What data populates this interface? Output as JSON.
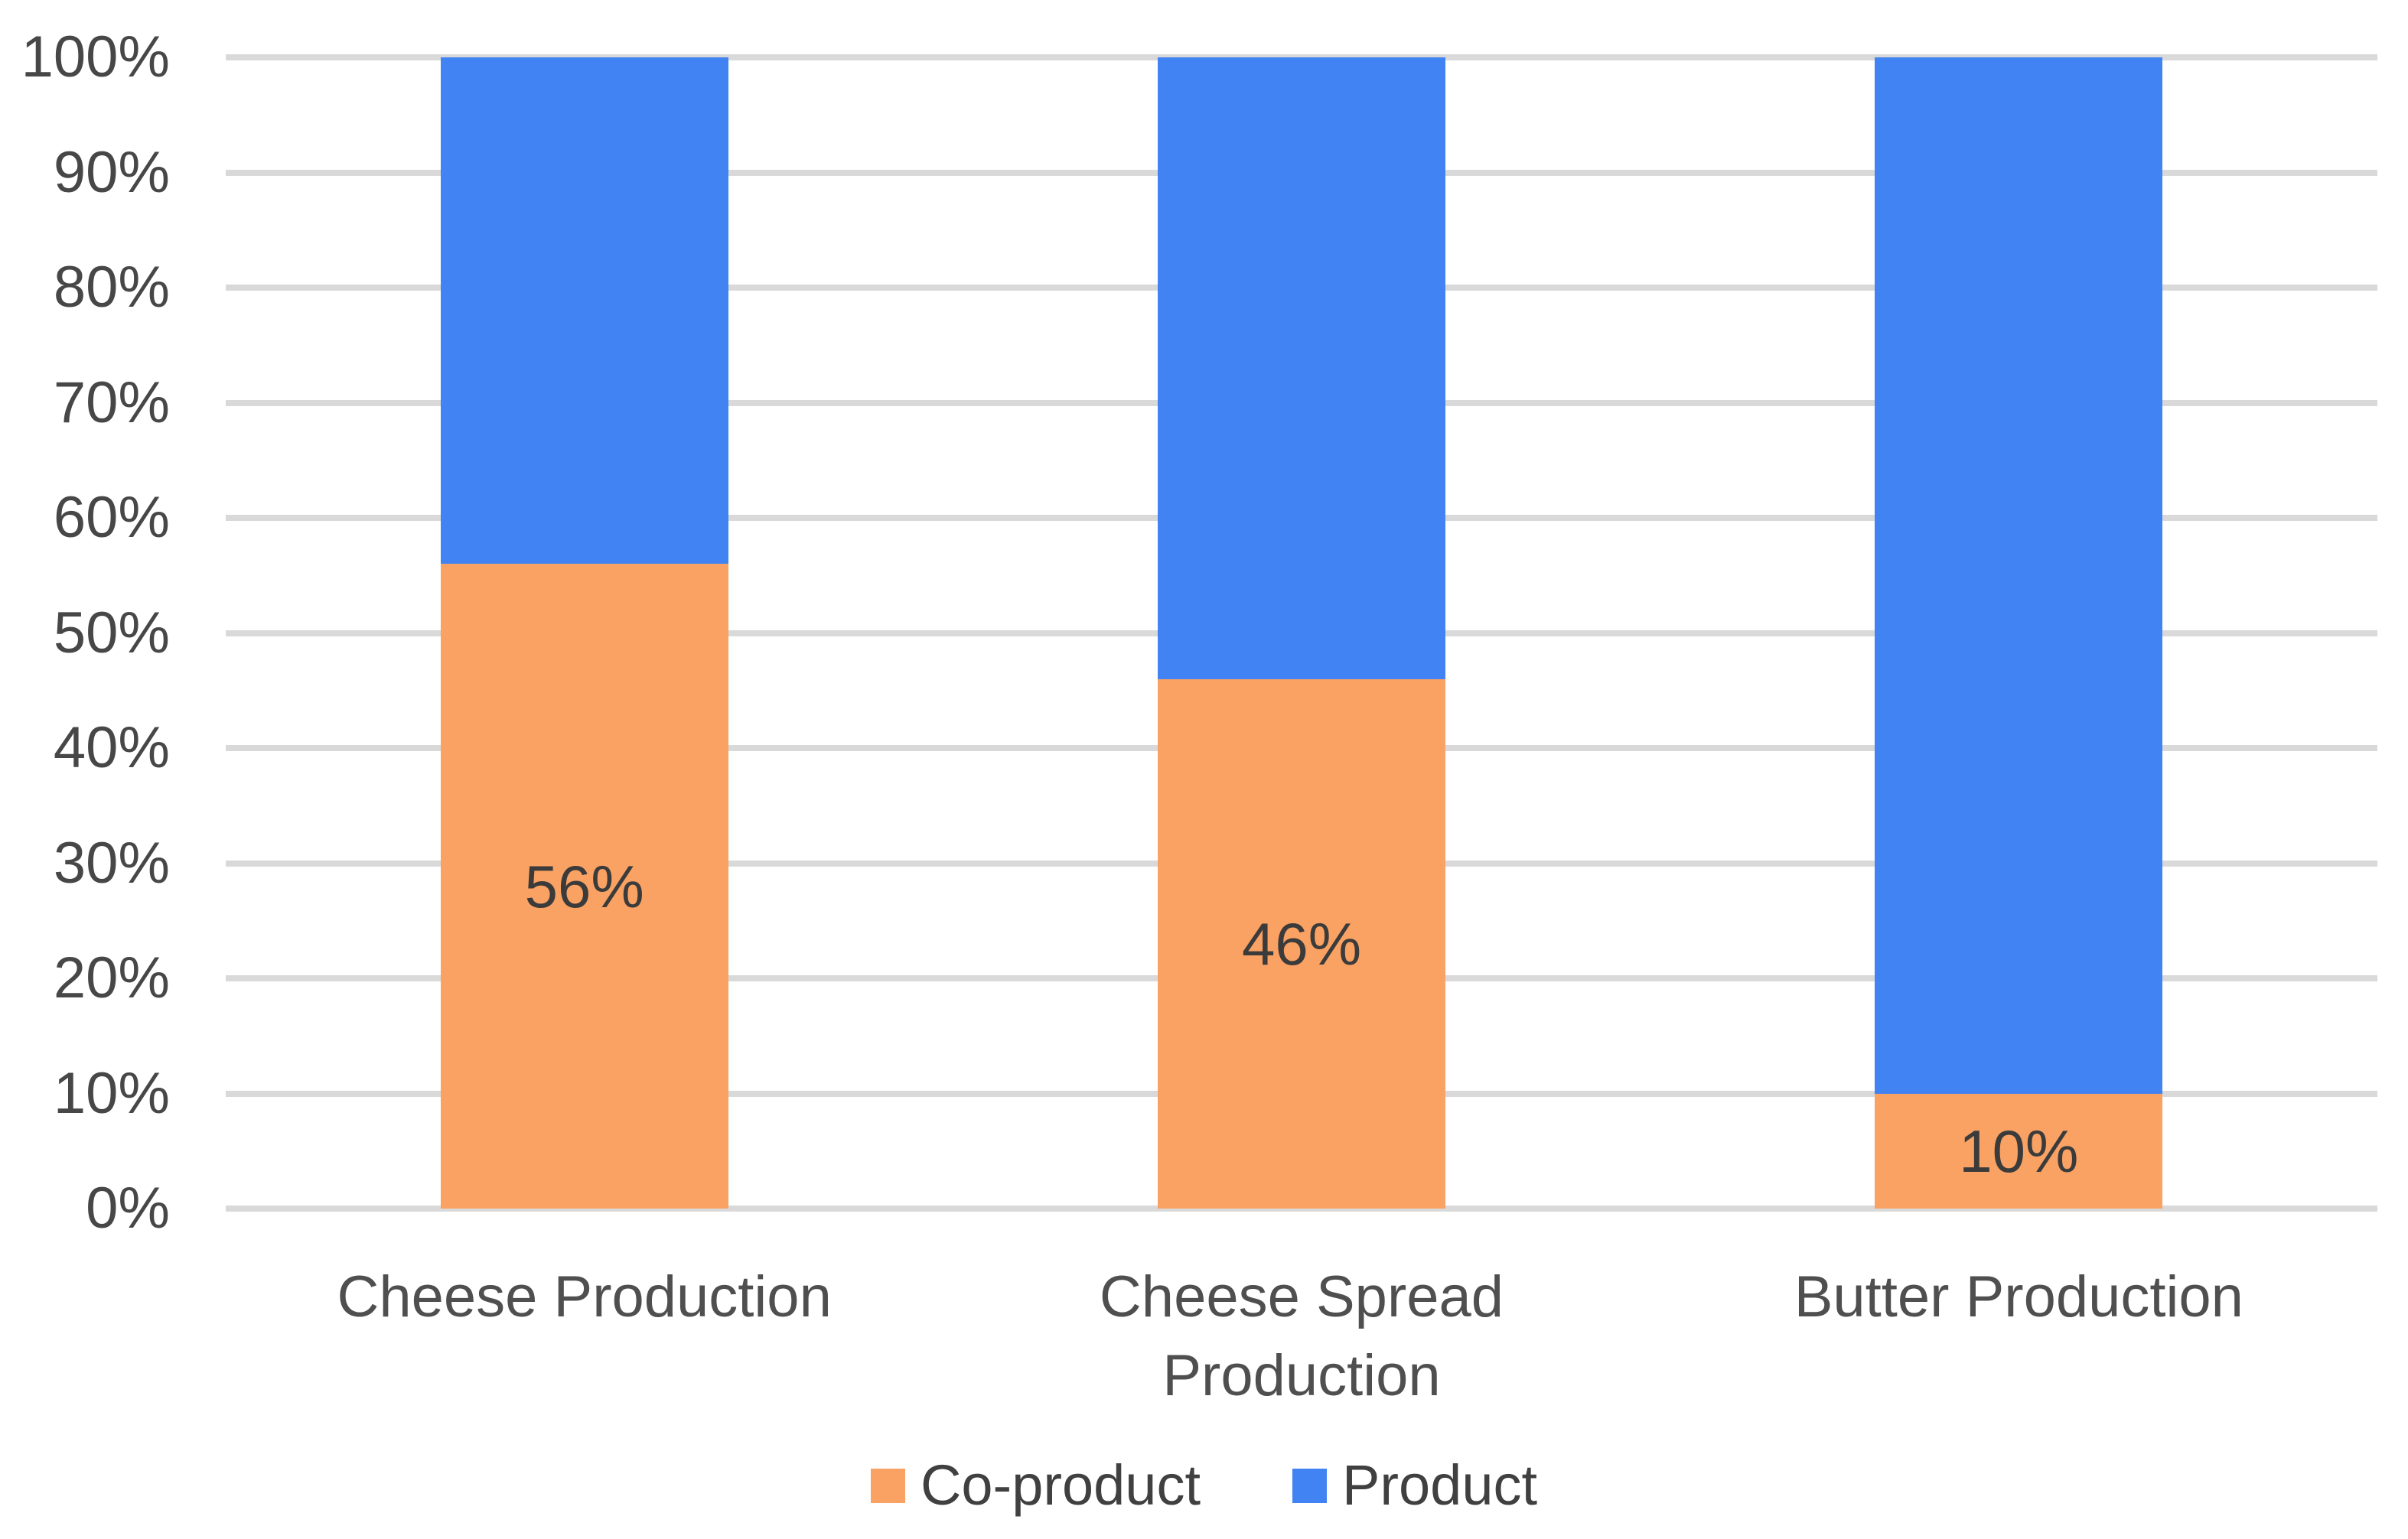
{
  "chart_data": {
    "type": "bar",
    "variant": "stacked-100-percent",
    "title": "",
    "xlabel": "",
    "ylabel": "",
    "categories": [
      "Cheese Production",
      "Cheese Spread Production",
      "Butter Production"
    ],
    "series": [
      {
        "name": "Co-product",
        "color": "#FAA263",
        "values": [
          56,
          46,
          10
        ],
        "data_labels": [
          "56%",
          "46%",
          "10%"
        ]
      },
      {
        "name": "Product",
        "color": "#4183F2",
        "values": [
          44,
          54,
          90
        ],
        "data_labels": [
          "",
          "",
          ""
        ]
      }
    ],
    "ylim": [
      0,
      100
    ],
    "ytick_step": 10,
    "yticks": [
      "0%",
      "10%",
      "20%",
      "30%",
      "40%",
      "50%",
      "60%",
      "70%",
      "80%",
      "90%",
      "100%"
    ],
    "grid": true,
    "gridline_color": "#d9d9d9",
    "axis_label_color": "#474747",
    "data_label_color": "#3b3b3b",
    "legend_position": "bottom",
    "legend": [
      {
        "label": "Co-product",
        "color": "#FAA263"
      },
      {
        "label": "Product",
        "color": "#4183F2"
      }
    ]
  }
}
